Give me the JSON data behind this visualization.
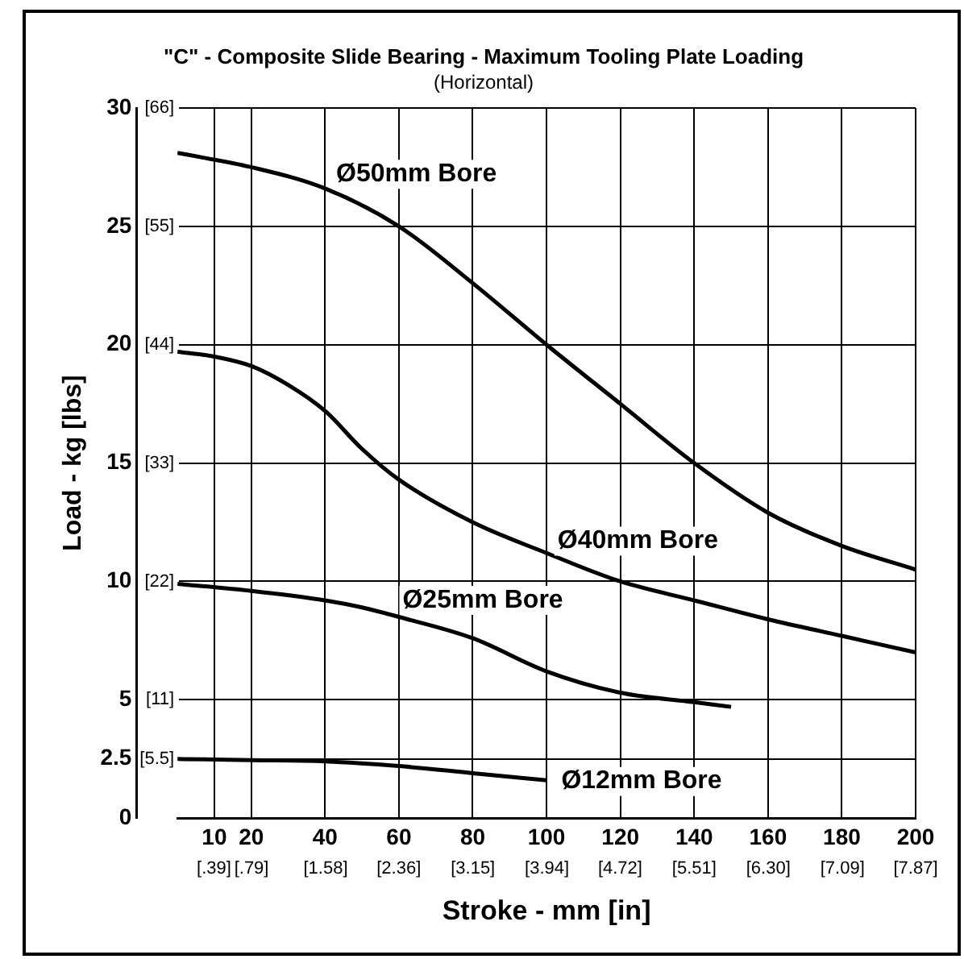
{
  "chart_data": {
    "type": "line",
    "title": "\"C\" - Composite Slide Bearing - Maximum Tooling Plate Loading",
    "subtitle": "(Horizontal)",
    "xlabel": "Stroke - mm [in]",
    "ylabel": "Load - kg [lbs]",
    "xlim": [
      0,
      200
    ],
    "ylim": [
      0,
      30
    ],
    "xticks": [
      10,
      20,
      40,
      60,
      80,
      100,
      120,
      140,
      160,
      180,
      200
    ],
    "yticks": [
      0,
      2.5,
      5,
      10,
      15,
      20,
      25,
      30
    ],
    "x2lim": [
      0,
      7.87
    ],
    "x2ticks": [
      {
        "value": 0.39,
        "label": "[.39]"
      },
      {
        "value": 0.79,
        "label": "[.79]"
      },
      {
        "value": 1.58,
        "label": "[1.58]"
      },
      {
        "value": 2.36,
        "label": "[2.36]"
      },
      {
        "value": 3.15,
        "label": "[3.15]"
      },
      {
        "value": 3.94,
        "label": "[3.94]"
      },
      {
        "value": 4.72,
        "label": "[4.72]"
      },
      {
        "value": 5.51,
        "label": "[5.51]"
      },
      {
        "value": 6.3,
        "label": "[6.30]"
      },
      {
        "value": 7.09,
        "label": "[7.09]"
      },
      {
        "value": 7.87,
        "label": "[7.87]"
      }
    ],
    "y2lim": [
      0,
      66
    ],
    "y2ticks": [
      {
        "value": 5.5,
        "label": "[5.5]"
      },
      {
        "value": 11,
        "label": "[11]"
      },
      {
        "value": 22,
        "label": "[22]"
      },
      {
        "value": 33,
        "label": "[33]"
      },
      {
        "value": 44,
        "label": "[44]"
      },
      {
        "value": 55,
        "label": "[55]"
      },
      {
        "value": 66,
        "label": "[66]"
      }
    ],
    "grid": true,
    "legend": false,
    "marker": "none",
    "line_style": "solid",
    "series": [
      {
        "name": "Ø50mm Bore",
        "color": "#000000",
        "x": [
          0,
          20,
          40,
          60,
          80,
          100,
          120,
          140,
          160,
          180,
          200
        ],
        "values": [
          28.1,
          27.5,
          26.6,
          25,
          22.6,
          20,
          17.5,
          15,
          12.9,
          11.5,
          10.5
        ]
      },
      {
        "name": "Ø40mm Bore",
        "color": "#000000",
        "x": [
          0,
          10,
          20,
          30,
          40,
          50,
          60,
          80,
          100,
          120,
          140,
          160,
          180,
          200
        ],
        "values": [
          19.7,
          19.5,
          19.1,
          18.3,
          17.2,
          15.6,
          14.3,
          12.5,
          11.2,
          10,
          9.2,
          8.4,
          7.7,
          7
        ]
      },
      {
        "name": "Ø25mm Bore",
        "color": "#000000",
        "x": [
          0,
          20,
          40,
          50,
          60,
          80,
          100,
          120,
          140,
          150
        ],
        "values": [
          9.9,
          9.6,
          9.2,
          8.9,
          8.5,
          7.6,
          6.2,
          5.3,
          4.9,
          4.7
        ]
      },
      {
        "name": "Ø12mm Bore",
        "color": "#000000",
        "x": [
          0,
          20,
          40,
          60,
          80,
          100
        ],
        "values": [
          2.5,
          2.45,
          2.4,
          2.2,
          1.9,
          1.6
        ]
      }
    ]
  }
}
